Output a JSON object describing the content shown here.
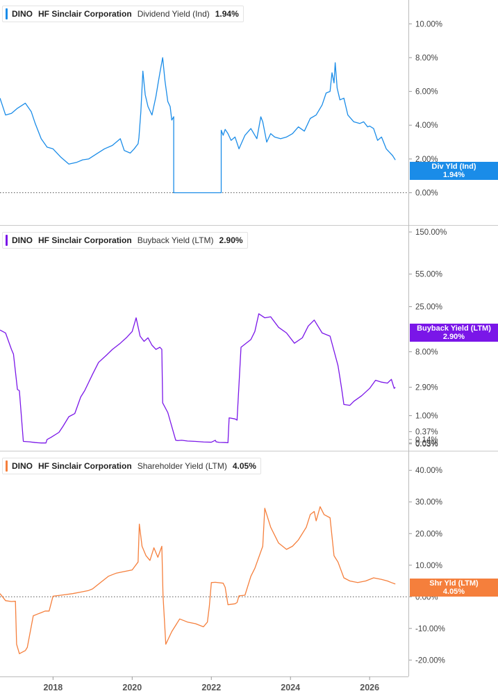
{
  "chart_data": [
    {
      "type": "line",
      "ticker": "DINO",
      "company": "HF Sinclair Corporation",
      "metric": "Dividend Yield (Ind)",
      "current_value": "1.94%",
      "tag_label": "Div Yld (Ind)",
      "tag_value": "1.94%",
      "color": "#1a8ce8",
      "scale": "linear",
      "ylim": [
        -1.5,
        11.0
      ],
      "yticks": [
        {
          "v": 0,
          "label": "0.00%"
        },
        {
          "v": 2,
          "label": "2.00%"
        },
        {
          "v": 4,
          "label": "4.00%"
        },
        {
          "v": 6,
          "label": "6.00%"
        },
        {
          "v": 8,
          "label": "8.00%"
        },
        {
          "v": 10,
          "label": "10.00%"
        }
      ],
      "zero_line": 0,
      "series": [
        {
          "x": [
            2016.66,
            2016.8,
            2016.95,
            2017.1,
            2017.3,
            2017.45,
            2017.55,
            2017.7,
            2017.85,
            2018.0,
            2018.2,
            2018.4,
            2018.6,
            2018.75,
            2018.9,
            2019.1,
            2019.3,
            2019.5,
            2019.7,
            2019.8,
            2019.95,
            2020.05,
            2020.15,
            2020.17,
            2020.22,
            2020.27,
            2020.33,
            2020.4,
            2020.5,
            2020.6,
            2020.65,
            2020.7,
            2020.77,
            2020.83,
            2020.9,
            2020.96,
            2021.0,
            2021.05,
            2021.05,
            2022.25,
            2022.25,
            2022.3,
            2022.35,
            2022.42,
            2022.5,
            2022.6,
            2022.7,
            2022.85,
            2023.0,
            2023.15,
            2023.25,
            2023.3,
            2023.4,
            2023.5,
            2023.6,
            2023.75,
            2023.9,
            2024.05,
            2024.2,
            2024.35,
            2024.5,
            2024.65,
            2024.8,
            2024.9,
            2025.0,
            2025.05,
            2025.1,
            2025.13,
            2025.18,
            2025.25,
            2025.35,
            2025.45,
            2025.6,
            2025.75,
            2025.85,
            2025.95,
            2026.0,
            2026.1,
            2026.2,
            2026.3,
            2026.42,
            2026.5,
            2026.58,
            2026.65
          ],
          "y": [
            5.6,
            4.6,
            4.7,
            5.0,
            5.3,
            4.8,
            4.1,
            3.2,
            2.7,
            2.6,
            2.1,
            1.7,
            1.8,
            1.95,
            2.0,
            2.3,
            2.6,
            2.8,
            3.2,
            2.5,
            2.35,
            2.6,
            2.9,
            3.25,
            4.8,
            7.2,
            5.8,
            5.1,
            4.6,
            5.7,
            6.4,
            7.1,
            8.0,
            6.6,
            5.4,
            5.1,
            4.3,
            4.5,
            0.0,
            0.0,
            3.7,
            3.4,
            3.75,
            3.5,
            3.1,
            3.3,
            2.6,
            3.4,
            3.8,
            3.2,
            4.5,
            4.2,
            3.0,
            3.5,
            3.3,
            3.2,
            3.3,
            3.5,
            3.9,
            3.65,
            4.4,
            4.6,
            5.2,
            5.9,
            6.0,
            7.1,
            6.5,
            7.7,
            6.2,
            5.5,
            5.6,
            4.6,
            4.2,
            4.1,
            4.2,
            3.9,
            3.95,
            3.8,
            3.1,
            3.3,
            2.6,
            2.4,
            2.2,
            1.94
          ]
        }
      ]
    },
    {
      "type": "line",
      "ticker": "DINO",
      "company": "HF Sinclair Corporation",
      "metric": "Buyback Yield (LTM)",
      "current_value": "2.90%",
      "tag_label": "Buyback Yield (LTM)",
      "tag_value": "2.90%",
      "color": "#7a16e8",
      "scale": "symlog",
      "ylim": [
        0.03,
        150
      ],
      "yticks": [
        {
          "v": 0.03,
          "label": "0.03%"
        },
        {
          "v": 0.05,
          "label": "0.05%"
        },
        {
          "v": 0.14,
          "label": "0.14%"
        },
        {
          "v": 0.37,
          "label": "0.37%"
        },
        {
          "v": 1.0,
          "label": "1.00%"
        },
        {
          "v": 2.9,
          "label": "2.90%"
        },
        {
          "v": 8.0,
          "label": "8.00%"
        },
        {
          "v": 25.0,
          "label": "25.00%"
        },
        {
          "v": 55.0,
          "label": "55.00%"
        },
        {
          "v": 150.0,
          "label": "150.00%"
        }
      ],
      "zero_line": null,
      "series": [
        {
          "x": [
            2016.66,
            2016.8,
            2016.95,
            2017.0,
            2017.1,
            2017.15,
            2017.25,
            2017.4,
            2017.55,
            2017.65,
            2017.7,
            2017.82,
            2017.85,
            2017.95,
            2018.15,
            2018.25,
            2018.4,
            2018.55,
            2018.7,
            2018.8,
            2019.0,
            2019.15,
            2019.35,
            2019.5,
            2019.7,
            2019.85,
            2020.0,
            2020.1,
            2020.2,
            2020.3,
            2020.4,
            2020.5,
            2020.6,
            2020.7,
            2020.75,
            2020.77,
            2020.9,
            2021.1,
            2021.15,
            2021.25,
            2021.4,
            2021.6,
            2021.8,
            2022.0,
            2022.1,
            2022.12,
            2022.2,
            2022.35,
            2022.42,
            2022.45,
            2022.6,
            2022.65,
            2022.75,
            2023.0,
            2023.1,
            2023.2,
            2023.35,
            2023.5,
            2023.7,
            2023.9,
            2024.1,
            2024.3,
            2024.45,
            2024.6,
            2024.8,
            2025.0,
            2025.2,
            2025.25,
            2025.3,
            2025.35,
            2025.5,
            2025.6,
            2025.8,
            2026.0,
            2026.15,
            2026.3,
            2026.45,
            2026.55,
            2026.62,
            2026.65
          ],
          "y": [
            14,
            13,
            8.5,
            7.5,
            2.7,
            2.6,
            0.09,
            0.08,
            0.06,
            0.053,
            0.05,
            0.05,
            0.14,
            0.2,
            0.35,
            0.55,
            0.95,
            1.1,
            2.1,
            2.6,
            4.3,
            6.0,
            7.3,
            8.5,
            10.0,
            11.5,
            13.5,
            19,
            12,
            10.5,
            11.5,
            9.5,
            8.5,
            9.0,
            8.5,
            1.7,
            1.15,
            0.12,
            0.11,
            0.12,
            0.1,
            0.09,
            0.075,
            0.07,
            0.12,
            0.08,
            0.065,
            0.06,
            0.055,
            0.9,
            0.85,
            0.8,
            9.0,
            11.0,
            13.5,
            21,
            19,
            19.5,
            15,
            13,
            10,
            11.5,
            15.5,
            18,
            13,
            12,
            5.5,
            3.9,
            2.6,
            1.6,
            1.55,
            1.8,
            2.2,
            2.8,
            3.6,
            3.4,
            3.3,
            3.7,
            2.8,
            2.9
          ]
        }
      ]
    },
    {
      "type": "line",
      "ticker": "DINO",
      "company": "HF Sinclair Corporation",
      "metric": "Shareholder Yield (LTM)",
      "current_value": "4.05%",
      "tag_label": "Shr Yld (LTM)",
      "tag_value": "4.05%",
      "color": "#f57f3c",
      "scale": "linear",
      "ylim": [
        -23.0,
        44.0
      ],
      "yticks": [
        {
          "v": -20,
          "label": "-20.00%"
        },
        {
          "v": -10,
          "label": "-10.00%"
        },
        {
          "v": 0,
          "label": "0.00%"
        },
        {
          "v": 10,
          "label": "10.00%"
        },
        {
          "v": 20,
          "label": "20.00%"
        },
        {
          "v": 30,
          "label": "30.00%"
        },
        {
          "v": 40,
          "label": "40.00%"
        }
      ],
      "zero_line": 0,
      "series": [
        {
          "x": [
            2016.66,
            2016.8,
            2016.95,
            2017.05,
            2017.08,
            2017.15,
            2017.3,
            2017.35,
            2017.5,
            2017.6,
            2017.7,
            2017.8,
            2017.9,
            2018.0,
            2018.2,
            2018.5,
            2018.7,
            2018.9,
            2019.0,
            2019.2,
            2019.4,
            2019.6,
            2019.8,
            2020.0,
            2020.15,
            2020.18,
            2020.25,
            2020.35,
            2020.45,
            2020.55,
            2020.65,
            2020.75,
            2020.78,
            2020.85,
            2021.0,
            2021.2,
            2021.4,
            2021.6,
            2021.8,
            2021.9,
            2021.95,
            2022.0,
            2022.1,
            2022.3,
            2022.35,
            2022.42,
            2022.6,
            2022.65,
            2022.7,
            2022.85,
            2023.0,
            2023.1,
            2023.3,
            2023.35,
            2023.5,
            2023.7,
            2023.9,
            2024.05,
            2024.2,
            2024.4,
            2024.5,
            2024.6,
            2024.65,
            2024.75,
            2024.85,
            2025.0,
            2025.1,
            2025.2,
            2025.35,
            2025.5,
            2025.7,
            2025.9,
            2026.1,
            2026.3,
            2026.45,
            2026.55,
            2026.65
          ],
          "y": [
            1.0,
            -1.2,
            -1.5,
            -1.4,
            -15,
            -18,
            -17,
            -16,
            -6,
            -5.5,
            -5,
            -4.5,
            -4.5,
            0.2,
            0.5,
            1.0,
            1.5,
            2.0,
            2.5,
            4.5,
            6.5,
            7.5,
            8.0,
            8.5,
            11,
            23,
            16,
            13,
            11.5,
            15.5,
            12.5,
            16,
            0.5,
            -15,
            -11,
            -7,
            -8,
            -8.5,
            -9.5,
            -8,
            -3,
            4.5,
            4.6,
            4.3,
            3.0,
            -2.5,
            -2.2,
            -1.8,
            0.3,
            0.5,
            6.5,
            9.0,
            16,
            28,
            22,
            17,
            15,
            16,
            18,
            22,
            26,
            27,
            24,
            28.5,
            26,
            25,
            13,
            11,
            6,
            5,
            4.5,
            5,
            6,
            5.5,
            5,
            4.5,
            4.05
          ]
        }
      ]
    }
  ],
  "x_axis": {
    "xlim": [
      2016.66,
      2026.98
    ],
    "ticks": [
      {
        "v": 2018,
        "label": "2018"
      },
      {
        "v": 2020,
        "label": "2020"
      },
      {
        "v": 2022,
        "label": "2022"
      },
      {
        "v": 2024,
        "label": "2024"
      },
      {
        "v": 2026,
        "label": "2026"
      }
    ]
  }
}
